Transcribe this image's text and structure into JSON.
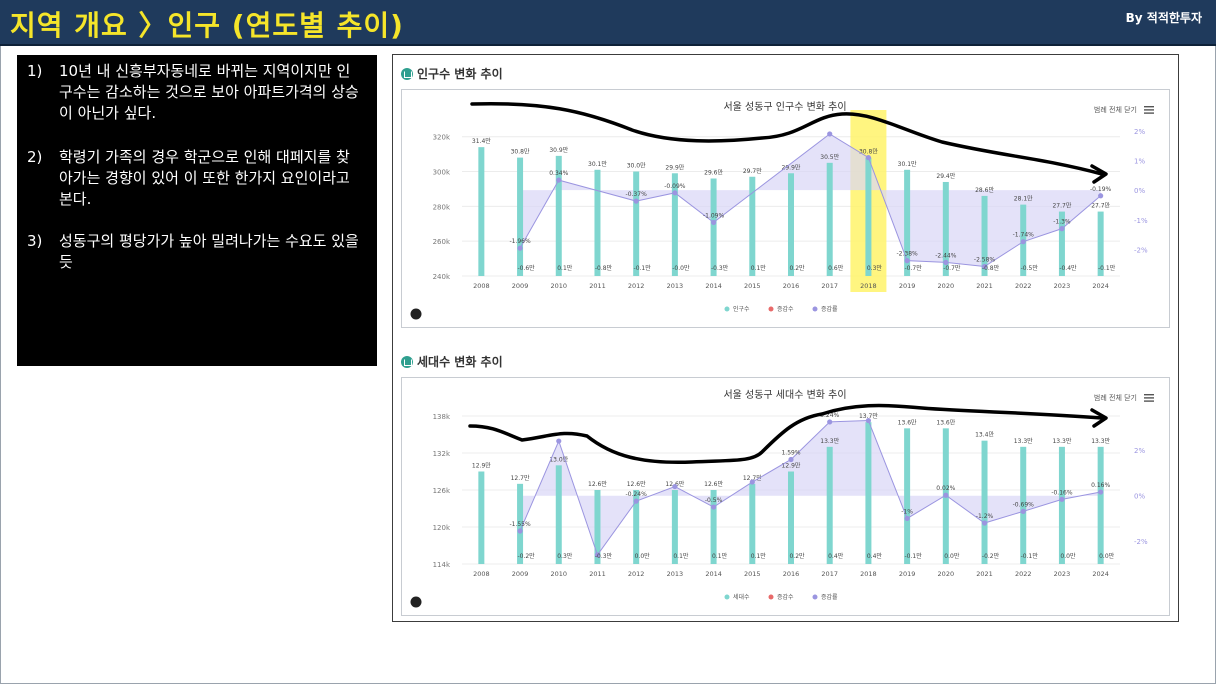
{
  "header": {
    "title": "지역 개요 〉인구 (연도별 추이)",
    "by": "By 적적한투자"
  },
  "notes": [
    {
      "num": "1)",
      "text": "10년 내 신흥부자동네로 바뀌는 지역이지만 인구수는 감소하는 것으로 보아 아파트가격의 상승이 아닌가 싶다."
    },
    {
      "num": "2)",
      "text": "학령기 가족의 경우 학군으로 인해 대페지를 찾아가는 경향이 있어 이 또한 한가지 요인이라고 본다."
    },
    {
      "num": "3)",
      "text": "성동구의 평당가가 높아 밀려나가는 수요도 있을 듯"
    }
  ],
  "sections": [
    {
      "title": "인구수 변화 추이",
      "menu_label": "범례 전체 닫기"
    },
    {
      "title": "세대수 변화 추이",
      "menu_label": "범례 전체 닫기"
    }
  ],
  "colors": {
    "bar": "#7fd6cf",
    "rate": "#9b95e0",
    "rate_fill": "#d9d6f7",
    "change": "#e86a6a",
    "highlight": "#fff36a",
    "banner_bg": "#1f3a5c",
    "banner_text": "#f5e52a",
    "trend": "#000000"
  },
  "chart_data": [
    {
      "type": "bar",
      "title": "서울 성동구 인구수 변화 추이",
      "categories": [
        "2008",
        "2009",
        "2010",
        "2011",
        "2012",
        "2013",
        "2014",
        "2015",
        "2016",
        "2017",
        "2018",
        "2019",
        "2020",
        "2021",
        "2022",
        "2023",
        "2024"
      ],
      "series": [
        {
          "name": "인구수",
          "axis": "left",
          "values": [
            314000,
            308000,
            309000,
            301000,
            300000,
            299000,
            296000,
            297000,
            299000,
            305000,
            308000,
            301000,
            294000,
            286000,
            281000,
            277000,
            277000
          ],
          "labels": [
            "31.4만",
            "30.8만",
            "30.9만",
            "30.1만",
            "30.0만",
            "29.9만",
            "29.6만",
            "29.7만",
            "29.9만",
            "30.5만",
            "30.8만",
            "30.1만",
            "29.4만",
            "28.6만",
            "28.1만",
            "27.7만",
            "27.7만"
          ]
        },
        {
          "name": "증감수",
          "values": [
            null,
            -0.6,
            0.1,
            -0.8,
            -0.1,
            -0.0,
            -0.3,
            0.1,
            0.2,
            0.6,
            0.3,
            -0.7,
            -0.7,
            -0.8,
            -0.5,
            -0.4,
            -0.1
          ],
          "labels": [
            "",
            "-0.6만",
            "0.1만",
            "-0.8만",
            "-0.1만",
            "-0.0만",
            "-0.3만",
            "0.1만",
            "0.2만",
            "0.6만",
            "0.3만",
            "-0.7만",
            "-0.7만",
            "-0.8만",
            "-0.5만",
            "-0.4만",
            "-0.1만"
          ]
        },
        {
          "name": "증감률",
          "axis": "right",
          "values": [
            null,
            -1.96,
            0.34,
            null,
            -0.37,
            -0.09,
            -1.09,
            null,
            null,
            1.9,
            1.1,
            -2.38,
            -2.44,
            -2.58,
            -1.74,
            -1.3,
            -0.19
          ],
          "labels": [
            "",
            "-1.96%",
            "0.34%",
            "",
            "-0.37%",
            "-0.09%",
            "-1.09%",
            "",
            "",
            "",
            "",
            "-2.38%",
            "-2.44%",
            "-2.58%",
            "-1.74%",
            "-1.3%",
            "-0.19%"
          ]
        }
      ],
      "left_axis": {
        "ticks": [
          "240k",
          "260k",
          "280k",
          "300k",
          "320k"
        ],
        "range": [
          240000,
          325000
        ]
      },
      "right_axis": {
        "ticks": [
          "-2%",
          "-1%",
          "0%",
          "1%",
          "2%"
        ],
        "range": [
          -2.9,
          2.1
        ]
      },
      "highlight_category": "2018",
      "legend": [
        "인구수",
        "증감수",
        "증감률"
      ],
      "legend_position": "bottom-center"
    },
    {
      "type": "bar",
      "title": "서울 성동구 세대수 변화 추이",
      "categories": [
        "2008",
        "2009",
        "2010",
        "2011",
        "2012",
        "2013",
        "2014",
        "2015",
        "2016",
        "2017",
        "2018",
        "2019",
        "2020",
        "2021",
        "2022",
        "2023",
        "2024"
      ],
      "series": [
        {
          "name": "세대수",
          "axis": "left",
          "values": [
            129000,
            127000,
            130000,
            126000,
            126000,
            126000,
            126000,
            127000,
            129000,
            133000,
            137000,
            136000,
            136000,
            134000,
            133000,
            133000,
            133000
          ],
          "labels": [
            "12.9만",
            "12.7만",
            "13.0만",
            "12.6만",
            "12.6만",
            "12.6만",
            "12.6만",
            "12.7만",
            "12.9만",
            "13.3만",
            "13.7만",
            "13.6만",
            "13.6만",
            "13.4만",
            "13.3만",
            "13.3만",
            "13.3만"
          ]
        },
        {
          "name": "증감수",
          "values": [
            null,
            -0.2,
            0.3,
            -0.3,
            0.0,
            0.1,
            0.1,
            0.1,
            0.2,
            0.4,
            0.4,
            -0.1,
            0.0,
            -0.2,
            -0.1,
            0.0,
            0.0
          ],
          "labels": [
            "",
            "-0.2만",
            "0.3만",
            "-0.3만",
            "0.0만",
            "0.1만",
            "0.1만",
            "0.1만",
            "0.2만",
            "0.4만",
            "0.4만",
            "-0.1만",
            "0.0만",
            "-0.2만",
            "-0.1만",
            "0.0만",
            "0.0만"
          ]
        },
        {
          "name": "증감률",
          "axis": "right",
          "values": [
            null,
            -1.55,
            2.4,
            -2.6,
            -0.24,
            0.4,
            -0.5,
            0.6,
            1.59,
            3.24,
            3.3,
            -1.0,
            0.02,
            -1.2,
            -0.69,
            -0.16,
            0.16
          ],
          "labels": [
            "",
            "-1.55%",
            "",
            "",
            "-0.24%",
            "",
            "-0.5%",
            "",
            "1.59%",
            "3.24%",
            "",
            "-1%",
            "0.02%",
            "-1.2%",
            "-0.69%",
            "-0.16%",
            "0.16%"
          ]
        }
      ],
      "left_axis": {
        "ticks": [
          "114k",
          "120k",
          "126k",
          "132k",
          "138k"
        ],
        "range": [
          114000,
          138000
        ]
      },
      "right_axis": {
        "ticks": [
          "-2%",
          "0%",
          "2%"
        ],
        "range": [
          -3.0,
          3.5
        ]
      },
      "legend": [
        "세대수",
        "증감수",
        "증감률"
      ],
      "legend_position": "bottom-center"
    }
  ]
}
